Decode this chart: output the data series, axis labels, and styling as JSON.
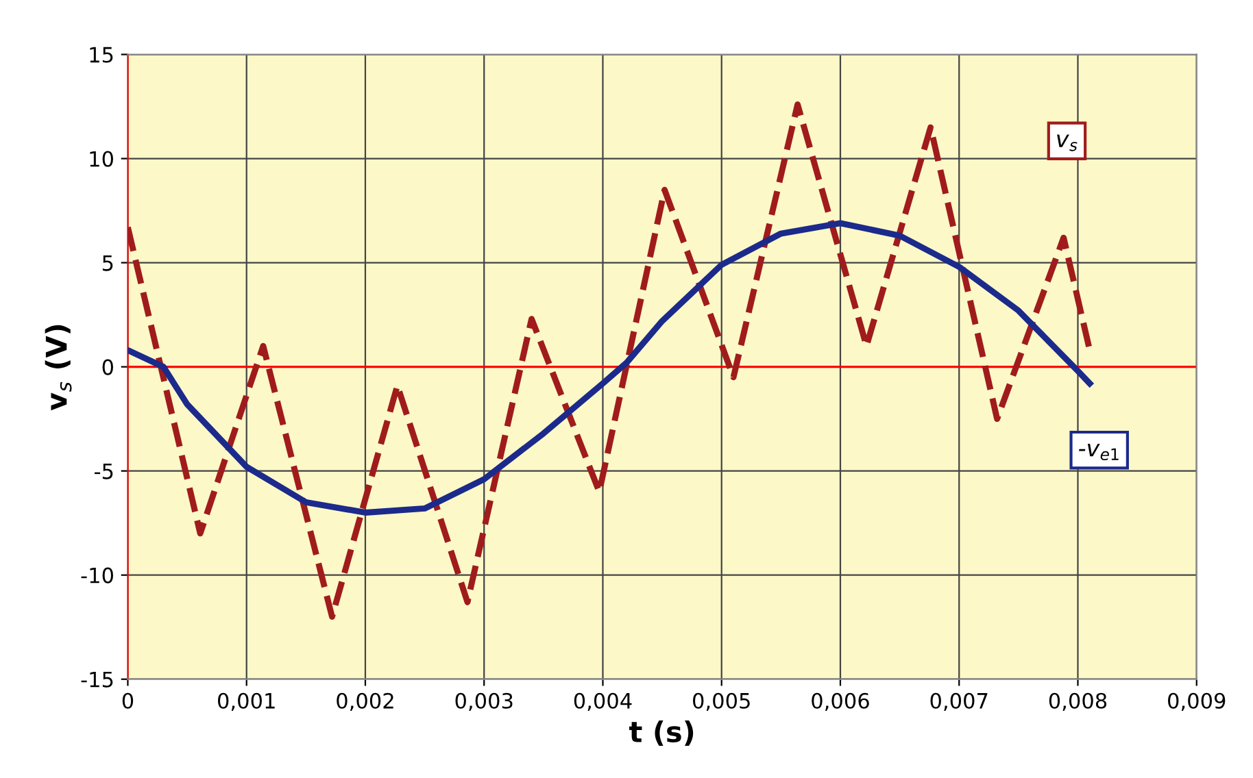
{
  "chart_data": {
    "type": "line",
    "xlabel": "t (s)",
    "ylabel": "v$_{s}$ (V)",
    "xlim": [
      0,
      0.009
    ],
    "ylim": [
      -15,
      15
    ],
    "xticks": [
      0,
      {
        "value": 0.001,
        "label": "0,001"
      },
      {
        "value": 0.002,
        "label": "0,002"
      },
      {
        "value": 0.003,
        "label": "0,003"
      },
      {
        "value": 0.004,
        "label": "0,004"
      },
      {
        "value": 0.005,
        "label": "0,005"
      },
      {
        "value": 0.006,
        "label": "0,006"
      },
      {
        "value": 0.007,
        "label": "0,007"
      },
      {
        "value": 0.008,
        "label": "0,008"
      },
      {
        "value": 0.009,
        "label": "0,009"
      }
    ],
    "yticks": [
      -15,
      -10,
      -5,
      0,
      5,
      10,
      15
    ],
    "grid": true,
    "ref_lines": [
      {
        "axis": "y",
        "value": 0,
        "color": "#ff0000"
      }
    ],
    "series": [
      {
        "name": "v$_{s}$",
        "color": "#a01c1c",
        "line_style": "dashed",
        "x": [
          0,
          0.00061,
          0.00114,
          0.00172,
          0.00227,
          0.00286,
          0.0034,
          0.00397,
          0.00452,
          0.0051,
          0.00564,
          0.00622,
          0.00676,
          0.00732,
          0.00788,
          0.0081
        ],
        "values": [
          6.7,
          -8.0,
          1.0,
          -12.0,
          -0.9,
          -11.3,
          2.3,
          -6.0,
          8.5,
          -0.5,
          12.6,
          1.0,
          11.5,
          -2.5,
          6.2,
          0.8
        ]
      },
      {
        "name": "-v$_{e1}$",
        "color": "#1c2a8c",
        "line_style": "solid",
        "x": [
          0,
          0.0003,
          0.0005,
          0.001,
          0.0015,
          0.002,
          0.0025,
          0.003,
          0.0035,
          0.004,
          0.0042,
          0.0045,
          0.005,
          0.0055,
          0.006,
          0.0065,
          0.007,
          0.0075,
          0.008,
          0.0081
        ],
        "values": [
          0.8,
          0,
          -1.8,
          -4.8,
          -6.5,
          -7.0,
          -6.8,
          -5.4,
          -3.2,
          -0.8,
          0.2,
          2.2,
          4.9,
          6.4,
          6.9,
          6.3,
          4.8,
          2.7,
          -0.2,
          -0.8
        ]
      }
    ]
  }
}
